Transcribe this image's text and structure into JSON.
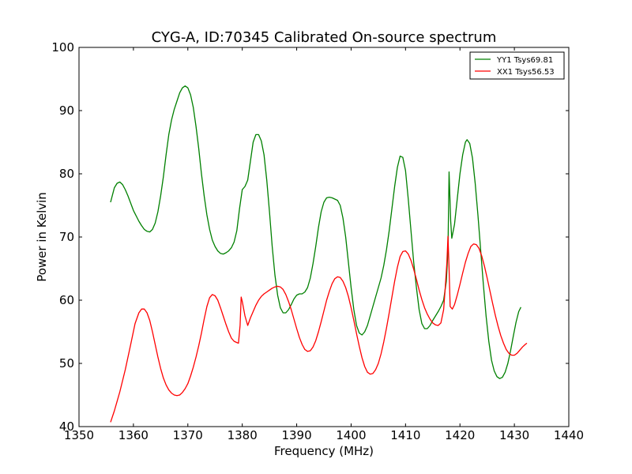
{
  "chart_data": {
    "type": "line",
    "title": "CYG-A, ID:70345 Calibrated On-source spectrum",
    "xlabel": "Frequency (MHz)",
    "ylabel": "Power in Kelvin",
    "xlim": [
      1350,
      1440
    ],
    "ylim": [
      40,
      100
    ],
    "xticks": [
      1350,
      1360,
      1370,
      1380,
      1390,
      1400,
      1410,
      1420,
      1430,
      1440
    ],
    "yticks": [
      40,
      50,
      60,
      70,
      80,
      90,
      100
    ],
    "grid": false,
    "legend_position": "top-right",
    "series": [
      {
        "name": "YY1 Tsys69.81",
        "color": "#008000",
        "points": [
          [
            1355.8,
            75.5
          ],
          [
            1356.5,
            77.8
          ],
          [
            1357,
            78.5
          ],
          [
            1357.5,
            78.7
          ],
          [
            1358,
            78.3
          ],
          [
            1358.5,
            77.5
          ],
          [
            1359,
            76.5
          ],
          [
            1360,
            74.2
          ],
          [
            1361,
            72.5
          ],
          [
            1361.5,
            71.8
          ],
          [
            1362,
            71.2
          ],
          [
            1362.5,
            70.9
          ],
          [
            1363,
            70.8
          ],
          [
            1363.5,
            71.2
          ],
          [
            1364,
            72.2
          ],
          [
            1364.5,
            74
          ],
          [
            1365,
            76.5
          ],
          [
            1365.5,
            79.5
          ],
          [
            1366,
            83
          ],
          [
            1366.5,
            86.2
          ],
          [
            1367,
            88.5
          ],
          [
            1367.5,
            90.2
          ],
          [
            1368,
            91.5
          ],
          [
            1368.5,
            92.8
          ],
          [
            1369,
            93.6
          ],
          [
            1369.5,
            93.9
          ],
          [
            1370,
            93.6
          ],
          [
            1370.5,
            92.5
          ],
          [
            1371,
            90.5
          ],
          [
            1371.5,
            87.5
          ],
          [
            1372,
            84
          ],
          [
            1372.5,
            80
          ],
          [
            1373,
            76.5
          ],
          [
            1373.5,
            73.5
          ],
          [
            1374,
            71.2
          ],
          [
            1374.5,
            69.5
          ],
          [
            1375,
            68.5
          ],
          [
            1375.5,
            67.8
          ],
          [
            1376,
            67.4
          ],
          [
            1376.5,
            67.3
          ],
          [
            1377,
            67.5
          ],
          [
            1377.5,
            67.8
          ],
          [
            1378,
            68.3
          ],
          [
            1378.5,
            69.2
          ],
          [
            1379,
            71
          ],
          [
            1379.5,
            74.5
          ],
          [
            1380,
            77.5
          ],
          [
            1380.5,
            78
          ],
          [
            1381,
            79
          ],
          [
            1381.5,
            82
          ],
          [
            1382,
            85
          ],
          [
            1382.5,
            86.2
          ],
          [
            1383,
            86.2
          ],
          [
            1383.5,
            85.2
          ],
          [
            1384,
            83
          ],
          [
            1384.5,
            79
          ],
          [
            1385,
            74
          ],
          [
            1385.5,
            68.5
          ],
          [
            1386,
            64
          ],
          [
            1386.5,
            60.8
          ],
          [
            1387,
            58.8
          ],
          [
            1387.5,
            58
          ],
          [
            1388,
            58
          ],
          [
            1388.5,
            58.5
          ],
          [
            1389,
            59.3
          ],
          [
            1389.5,
            60.2
          ],
          [
            1390,
            60.8
          ],
          [
            1390.5,
            61
          ],
          [
            1391,
            61
          ],
          [
            1391.5,
            61.3
          ],
          [
            1392,
            62
          ],
          [
            1392.5,
            63.5
          ],
          [
            1393,
            65.8
          ],
          [
            1393.5,
            68.5
          ],
          [
            1394,
            71.5
          ],
          [
            1394.5,
            74
          ],
          [
            1395,
            75.5
          ],
          [
            1395.5,
            76.2
          ],
          [
            1396,
            76.3
          ],
          [
            1396.5,
            76.2
          ],
          [
            1397,
            76
          ],
          [
            1397.5,
            75.8
          ],
          [
            1398,
            75
          ],
          [
            1398.5,
            73
          ],
          [
            1399,
            70
          ],
          [
            1399.5,
            66
          ],
          [
            1400,
            62
          ],
          [
            1400.5,
            58.5
          ],
          [
            1401,
            56
          ],
          [
            1401.5,
            54.8
          ],
          [
            1402,
            54.5
          ],
          [
            1402.5,
            55
          ],
          [
            1403,
            56
          ],
          [
            1403.5,
            57.5
          ],
          [
            1404,
            59
          ],
          [
            1404.5,
            60.5
          ],
          [
            1405,
            62
          ],
          [
            1405.5,
            63.5
          ],
          [
            1406,
            65.5
          ],
          [
            1406.5,
            68
          ],
          [
            1407,
            71
          ],
          [
            1407.5,
            74.5
          ],
          [
            1408,
            78
          ],
          [
            1408.5,
            81
          ],
          [
            1409,
            82.8
          ],
          [
            1409.5,
            82.6
          ],
          [
            1410,
            80.5
          ],
          [
            1410.5,
            76
          ],
          [
            1411,
            71
          ],
          [
            1411.5,
            66
          ],
          [
            1412,
            62
          ],
          [
            1412.5,
            58.5
          ],
          [
            1413,
            56.3
          ],
          [
            1413.5,
            55.5
          ],
          [
            1414,
            55.5
          ],
          [
            1414.5,
            56
          ],
          [
            1415,
            56.8
          ],
          [
            1415.5,
            57.5
          ],
          [
            1416,
            58.2
          ],
          [
            1416.5,
            59
          ],
          [
            1417,
            60
          ],
          [
            1417.5,
            63
          ],
          [
            1417.8,
            68
          ],
          [
            1418,
            80.3
          ],
          [
            1418.3,
            72.5
          ],
          [
            1418.5,
            69.8
          ],
          [
            1419,
            72
          ],
          [
            1419.5,
            76
          ],
          [
            1420,
            80
          ],
          [
            1420.5,
            83
          ],
          [
            1421,
            85
          ],
          [
            1421.3,
            85.4
          ],
          [
            1421.8,
            84.8
          ],
          [
            1422.3,
            82.5
          ],
          [
            1422.8,
            78.5
          ],
          [
            1423.3,
            73.5
          ],
          [
            1423.8,
            68
          ],
          [
            1424.3,
            62.5
          ],
          [
            1424.8,
            57.5
          ],
          [
            1425.3,
            53.5
          ],
          [
            1425.8,
            50.5
          ],
          [
            1426.3,
            48.8
          ],
          [
            1426.8,
            47.9
          ],
          [
            1427.3,
            47.6
          ],
          [
            1427.8,
            47.8
          ],
          [
            1428.3,
            48.6
          ],
          [
            1428.8,
            50
          ],
          [
            1429.3,
            52
          ],
          [
            1429.8,
            54.3
          ],
          [
            1430.3,
            56.5
          ],
          [
            1430.8,
            58.2
          ],
          [
            1431.2,
            58.9
          ]
        ]
      },
      {
        "name": "XX1 Tsys56.53",
        "color": "#ff0000",
        "points": [
          [
            1355.8,
            40.7
          ],
          [
            1356.5,
            42.5
          ],
          [
            1357.5,
            45.5
          ],
          [
            1358.5,
            49
          ],
          [
            1359.5,
            53
          ],
          [
            1360.3,
            56.3
          ],
          [
            1361,
            58
          ],
          [
            1361.5,
            58.6
          ],
          [
            1362,
            58.6
          ],
          [
            1362.5,
            58
          ],
          [
            1363,
            56.8
          ],
          [
            1363.5,
            55
          ],
          [
            1364,
            53
          ],
          [
            1364.5,
            51
          ],
          [
            1365,
            49.2
          ],
          [
            1365.5,
            47.7
          ],
          [
            1366,
            46.6
          ],
          [
            1366.5,
            45.8
          ],
          [
            1367,
            45.3
          ],
          [
            1367.5,
            45
          ],
          [
            1368,
            44.9
          ],
          [
            1368.5,
            45
          ],
          [
            1369,
            45.4
          ],
          [
            1369.5,
            46
          ],
          [
            1370,
            46.8
          ],
          [
            1370.5,
            48
          ],
          [
            1371,
            49.4
          ],
          [
            1371.5,
            51
          ],
          [
            1372,
            52.8
          ],
          [
            1372.5,
            54.8
          ],
          [
            1373,
            57
          ],
          [
            1373.5,
            59
          ],
          [
            1374,
            60.4
          ],
          [
            1374.5,
            60.9
          ],
          [
            1375,
            60.7
          ],
          [
            1375.5,
            60
          ],
          [
            1376,
            58.8
          ],
          [
            1376.5,
            57.5
          ],
          [
            1377,
            56.2
          ],
          [
            1377.5,
            55
          ],
          [
            1378,
            54
          ],
          [
            1378.5,
            53.5
          ],
          [
            1379,
            53.3
          ],
          [
            1379.3,
            53.2
          ],
          [
            1379.6,
            56
          ],
          [
            1379.8,
            60.5
          ],
          [
            1380,
            59.8
          ],
          [
            1380.5,
            57.5
          ],
          [
            1381,
            56
          ],
          [
            1381.5,
            57.2
          ],
          [
            1382,
            58.2
          ],
          [
            1382.5,
            59.2
          ],
          [
            1383,
            60
          ],
          [
            1383.5,
            60.6
          ],
          [
            1384,
            61
          ],
          [
            1384.5,
            61.3
          ],
          [
            1385,
            61.6
          ],
          [
            1385.5,
            61.9
          ],
          [
            1386,
            62.1
          ],
          [
            1386.5,
            62.2
          ],
          [
            1387,
            62.1
          ],
          [
            1387.5,
            61.7
          ],
          [
            1388,
            60.9
          ],
          [
            1388.5,
            59.8
          ],
          [
            1389,
            58.5
          ],
          [
            1389.5,
            57
          ],
          [
            1390,
            55.5
          ],
          [
            1390.5,
            54.1
          ],
          [
            1391,
            53
          ],
          [
            1391.5,
            52.2
          ],
          [
            1392,
            51.9
          ],
          [
            1392.5,
            52
          ],
          [
            1393,
            52.6
          ],
          [
            1393.5,
            53.6
          ],
          [
            1394,
            55
          ],
          [
            1394.5,
            56.6
          ],
          [
            1395,
            58.3
          ],
          [
            1395.5,
            60
          ],
          [
            1396,
            61.4
          ],
          [
            1396.5,
            62.6
          ],
          [
            1397,
            63.4
          ],
          [
            1397.5,
            63.7
          ],
          [
            1398,
            63.6
          ],
          [
            1398.5,
            63
          ],
          [
            1399,
            62
          ],
          [
            1399.5,
            60.6
          ],
          [
            1400,
            58.8
          ],
          [
            1400.5,
            56.8
          ],
          [
            1401,
            54.7
          ],
          [
            1401.5,
            52.7
          ],
          [
            1402,
            50.9
          ],
          [
            1402.5,
            49.5
          ],
          [
            1403,
            48.6
          ],
          [
            1403.5,
            48.3
          ],
          [
            1404,
            48.4
          ],
          [
            1404.5,
            49
          ],
          [
            1405,
            50
          ],
          [
            1405.5,
            51.5
          ],
          [
            1406,
            53.4
          ],
          [
            1406.5,
            55.6
          ],
          [
            1407,
            58
          ],
          [
            1407.5,
            60.5
          ],
          [
            1408,
            63
          ],
          [
            1408.5,
            65.2
          ],
          [
            1409,
            66.9
          ],
          [
            1409.5,
            67.7
          ],
          [
            1410,
            67.8
          ],
          [
            1410.5,
            67.3
          ],
          [
            1411,
            66.3
          ],
          [
            1411.5,
            64.9
          ],
          [
            1412,
            63.3
          ],
          [
            1412.5,
            61.6
          ],
          [
            1413,
            60.1
          ],
          [
            1413.5,
            58.8
          ],
          [
            1414,
            57.8
          ],
          [
            1414.5,
            57
          ],
          [
            1415,
            56.4
          ],
          [
            1415.5,
            56.1
          ],
          [
            1416,
            56
          ],
          [
            1416.5,
            56.4
          ],
          [
            1417,
            58.5
          ],
          [
            1417.3,
            62
          ],
          [
            1417.6,
            66
          ],
          [
            1417.8,
            70.1
          ],
          [
            1418,
            65
          ],
          [
            1418.2,
            59
          ],
          [
            1418.6,
            58.6
          ],
          [
            1419,
            59.3
          ],
          [
            1419.5,
            60.8
          ],
          [
            1420,
            62.5
          ],
          [
            1420.5,
            64.3
          ],
          [
            1421,
            66
          ],
          [
            1421.5,
            67.4
          ],
          [
            1422,
            68.5
          ],
          [
            1422.5,
            68.9
          ],
          [
            1423,
            68.8
          ],
          [
            1423.5,
            68.2
          ],
          [
            1424,
            67
          ],
          [
            1424.5,
            65.4
          ],
          [
            1425,
            63.5
          ],
          [
            1425.5,
            61.5
          ],
          [
            1426,
            59.5
          ],
          [
            1426.5,
            57.6
          ],
          [
            1427,
            55.9
          ],
          [
            1427.5,
            54.4
          ],
          [
            1428,
            53.2
          ],
          [
            1428.5,
            52.2
          ],
          [
            1429,
            51.6
          ],
          [
            1429.5,
            51.3
          ],
          [
            1430,
            51.3
          ],
          [
            1430.5,
            51.6
          ],
          [
            1431,
            52.1
          ],
          [
            1431.5,
            52.6
          ],
          [
            1432,
            53
          ],
          [
            1432.3,
            53.2
          ]
        ]
      }
    ]
  }
}
